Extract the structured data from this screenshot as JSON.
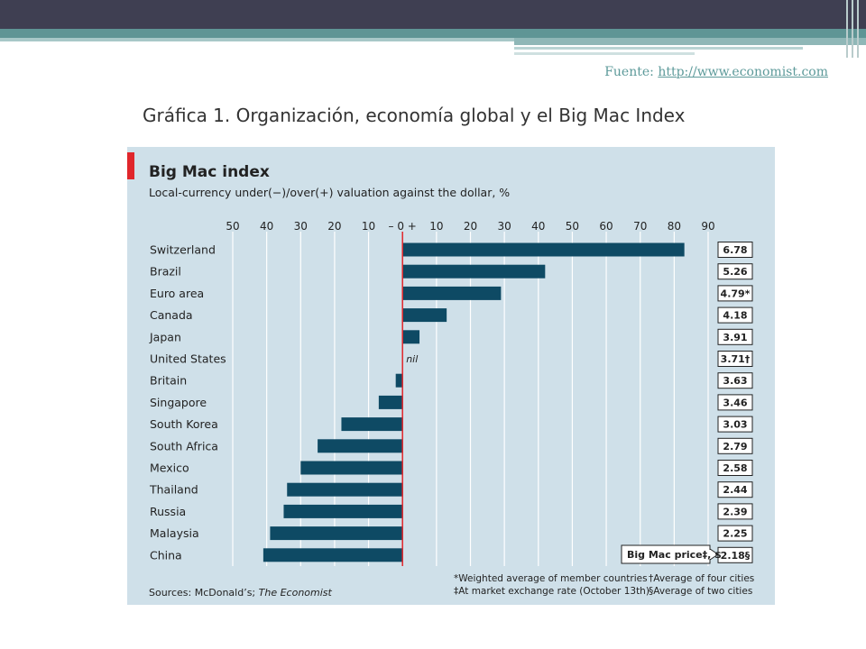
{
  "slide": {
    "source_label": "Fuente: ",
    "source_link": "http://www.economist.com",
    "title": "Gráfica 1. Organización, economía global y el Big Mac Index"
  },
  "chart_data": {
    "type": "bar",
    "orientation": "horizontal",
    "title": "Big Mac index",
    "subtitle": "Local-currency under(−)/over(+) valuation against the dollar, %",
    "categories": [
      "Switzerland",
      "Brazil",
      "Euro area",
      "Canada",
      "Japan",
      "United States",
      "Britain",
      "Singapore",
      "South Korea",
      "South Africa",
      "Mexico",
      "Thailand",
      "Russia",
      "Malaysia",
      "China"
    ],
    "values": [
      83,
      42,
      29,
      13,
      5,
      0,
      -2,
      -7,
      -18,
      -25,
      -30,
      -34,
      -35,
      -39,
      -41
    ],
    "price_labels": [
      "6.78",
      "5.26",
      "4.79*",
      "4.18",
      "3.91",
      "3.71†",
      "3.63",
      "3.46",
      "3.03",
      "2.79",
      "2.58",
      "2.44",
      "2.39",
      "2.25",
      "2.18§"
    ],
    "xlim": [
      -50,
      90
    ],
    "x_ticks": [
      -50,
      -40,
      -30,
      -20,
      -10,
      0,
      10,
      20,
      30,
      40,
      50,
      60,
      70,
      80,
      90
    ],
    "x_tick_labels": [
      "50",
      "40",
      "30",
      "20",
      "10",
      "–  0  +",
      "10",
      "20",
      "30",
      "40",
      "50",
      "60",
      "70",
      "80",
      "90"
    ],
    "grid": true,
    "annotations": {
      "nil": "nil",
      "price_box_label": "Big Mac price‡, $"
    },
    "footnotes": {
      "sources_prefix": "Sources: McDonald’s; ",
      "sources_publication": "The Economist",
      "note1": "*Weighted average of member countries",
      "note2": "‡At market exchange rate (October 13th)",
      "note3": "†Average of four cities",
      "note4": "§Average of two cities"
    },
    "colors": {
      "background": "#cfe0e9",
      "bar": "#0e4a64",
      "zero_line": "#e0262b",
      "accent": "#e0262b"
    }
  }
}
